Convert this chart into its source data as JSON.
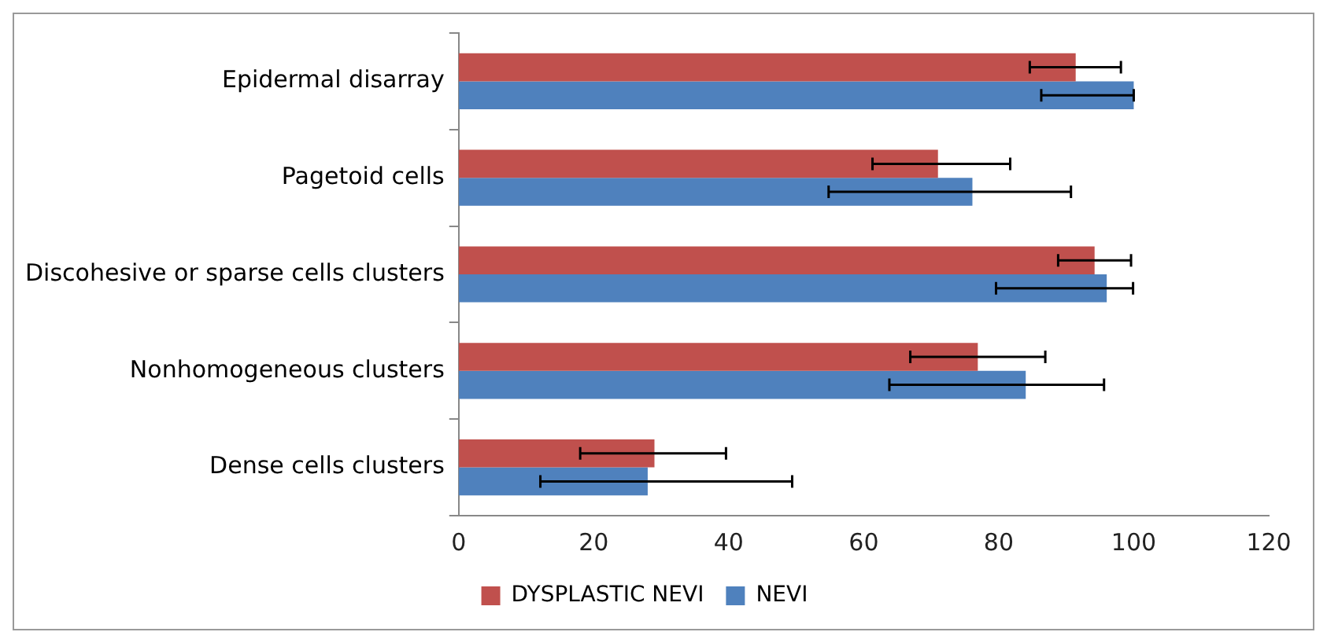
{
  "chart_data": {
    "type": "bar",
    "orientation": "horizontal",
    "categories": [
      "Epidermal disarray",
      "Pagetoid cells",
      "Discohesive or sparse cells clusters",
      "Nonhomogeneous clusters",
      "Dense cells clusters"
    ],
    "series": [
      {
        "name": "DYSPLASTIC NEVI",
        "color": "#c0504d",
        "values": [
          91.4,
          71,
          94.2,
          76.9,
          29
        ],
        "errors": [
          [
            84.6,
            98.1
          ],
          [
            61.3,
            81.7
          ],
          [
            88.8,
            99.6
          ],
          [
            66.9,
            86.9
          ],
          [
            18,
            39.6
          ]
        ]
      },
      {
        "name": "NEVI",
        "color": "#4f81bd",
        "values": [
          100,
          76.1,
          96,
          84,
          28
        ],
        "errors": [
          [
            86.3,
            100
          ],
          [
            54.8,
            90.7
          ],
          [
            79.6,
            99.9
          ],
          [
            63.8,
            95.6
          ],
          [
            12.1,
            49.4
          ]
        ]
      }
    ],
    "xlim": [
      0,
      120
    ],
    "xticks": [
      0,
      20,
      40,
      60,
      80,
      100,
      120
    ],
    "grid": false,
    "legend": "bottom"
  }
}
